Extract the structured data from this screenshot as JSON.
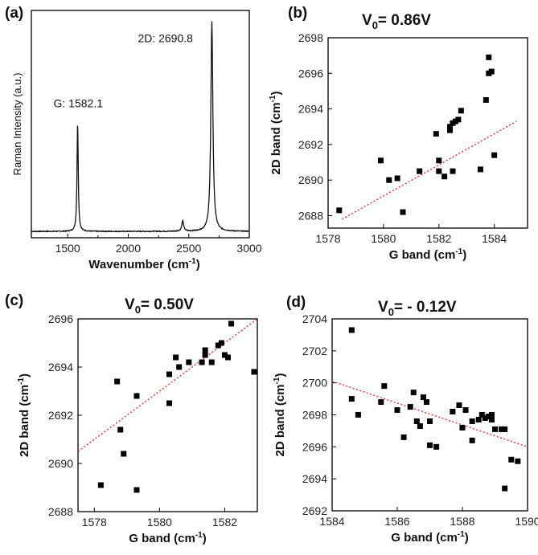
{
  "chart_data": [
    {
      "panel": "(a)",
      "type": "line",
      "xlabel": "Wavenumber",
      "xlabel_unit_base": "(cm",
      "xlabel_unit_exp": "-1",
      "xlabel_unit_end": ")",
      "ylabel": "Raman Intensity (a.u.)",
      "xlim": [
        1200,
        3000
      ],
      "xticks": [
        1500,
        2000,
        2500,
        3000
      ],
      "annotations": [
        {
          "text": "G: 1582.1",
          "x": 1582.1
        },
        {
          "text": "2D: 2690.8",
          "x": 2690.8
        }
      ],
      "peaks": [
        {
          "center": 1582.1,
          "height": 0.52,
          "width": 12
        },
        {
          "center": 2450,
          "height": 0.05,
          "width": 18
        },
        {
          "center": 2690.8,
          "height": 1.0,
          "width": 20
        }
      ],
      "baseline": 0.03
    },
    {
      "panel": "(b)",
      "type": "scatter",
      "title_prefix": "V",
      "title_sub": "0",
      "title_suffix": "= 0.86V",
      "xlabel": "G band (cm",
      "xlabel_exp": "-1",
      "xlabel_end": ")",
      "ylabel": "2D band (cm",
      "ylabel_exp": "-1",
      "ylabel_end": ")",
      "xlim": [
        1578,
        1585.2
      ],
      "ylim": [
        2687.3,
        2698
      ],
      "xticks": [
        1578,
        1580,
        1582,
        1584
      ],
      "yticks": [
        2688,
        2690,
        2692,
        2694,
        2696,
        2698
      ],
      "fit": [
        [
          1578.5,
          2687.8
        ],
        [
          1584.8,
          2693.3
        ]
      ],
      "points": [
        [
          1578.4,
          2688.3
        ],
        [
          1579.9,
          2691.1
        ],
        [
          1580.2,
          2690.0
        ],
        [
          1580.5,
          2690.1
        ],
        [
          1580.7,
          2688.2
        ],
        [
          1581.3,
          2690.5
        ],
        [
          1581.9,
          2692.6
        ],
        [
          1582.0,
          2691.1
        ],
        [
          1582.0,
          2690.5
        ],
        [
          1582.2,
          2690.2
        ],
        [
          1582.4,
          2692.8
        ],
        [
          1582.4,
          2693.0
        ],
        [
          1582.5,
          2693.2
        ],
        [
          1582.5,
          2690.5
        ],
        [
          1582.6,
          2693.3
        ],
        [
          1582.7,
          2693.4
        ],
        [
          1582.8,
          2693.9
        ],
        [
          1583.5,
          2690.6
        ],
        [
          1583.7,
          2694.5
        ],
        [
          1583.8,
          2696.0
        ],
        [
          1583.8,
          2696.9
        ],
        [
          1583.9,
          2696.1
        ],
        [
          1584.0,
          2691.4
        ]
      ]
    },
    {
      "panel": "(c)",
      "type": "scatter",
      "title_prefix": "V",
      "title_sub": "0",
      "title_suffix": "= 0.50V",
      "xlabel": "G band (cm",
      "xlabel_exp": "-1",
      "xlabel_end": ")",
      "ylabel": "2D band (cm",
      "ylabel_exp": "-1",
      "ylabel_end": ")",
      "xlim": [
        1577.5,
        1583
      ],
      "ylim": [
        2688,
        2696
      ],
      "xticks": [
        1578,
        1580,
        1582
      ],
      "yticks": [
        2688,
        2690,
        2692,
        2694,
        2696
      ],
      "fit": [
        [
          1577.5,
          2690.5
        ],
        [
          1583,
          2696
        ]
      ],
      "points": [
        [
          1578.2,
          2689.1
        ],
        [
          1578.7,
          2693.4
        ],
        [
          1578.8,
          2691.4
        ],
        [
          1578.9,
          2690.4
        ],
        [
          1579.3,
          2692.8
        ],
        [
          1579.3,
          2688.9
        ],
        [
          1580.3,
          2692.5
        ],
        [
          1580.3,
          2693.7
        ],
        [
          1580.5,
          2694.4
        ],
        [
          1580.6,
          2694.0
        ],
        [
          1580.9,
          2694.2
        ],
        [
          1581.3,
          2694.2
        ],
        [
          1581.4,
          2694.7
        ],
        [
          1581.4,
          2694.5
        ],
        [
          1581.6,
          2694.2
        ],
        [
          1581.8,
          2694.9
        ],
        [
          1581.9,
          2695.0
        ],
        [
          1582.0,
          2694.5
        ],
        [
          1582.1,
          2694.4
        ],
        [
          1582.2,
          2695.8
        ],
        [
          1582.9,
          2693.8
        ]
      ]
    },
    {
      "panel": "(d)",
      "type": "scatter",
      "title_prefix": "V",
      "title_sub": "0",
      "title_suffix": "= - 0.12V",
      "xlabel": "G band (cm",
      "xlabel_exp": "-1",
      "xlabel_end": ")",
      "ylabel": "2D band (cm",
      "ylabel_exp": "-1",
      "ylabel_end": ")",
      "xlim": [
        1584,
        1590
      ],
      "ylim": [
        2692,
        2704
      ],
      "xticks": [
        1584,
        1586,
        1588,
        1590
      ],
      "yticks": [
        2692,
        2694,
        2696,
        2698,
        2700,
        2702,
        2704
      ],
      "fit": [
        [
          1584,
          2700.1
        ],
        [
          1590,
          2696.0
        ]
      ],
      "points": [
        [
          1584.6,
          2703.3
        ],
        [
          1584.6,
          2699.0
        ],
        [
          1584.8,
          2698.0
        ],
        [
          1585.5,
          2698.8
        ],
        [
          1585.6,
          2699.8
        ],
        [
          1586.0,
          2698.3
        ],
        [
          1586.2,
          2696.6
        ],
        [
          1586.4,
          2698.5
        ],
        [
          1586.5,
          2699.4
        ],
        [
          1586.6,
          2697.6
        ],
        [
          1586.7,
          2697.3
        ],
        [
          1586.8,
          2699.1
        ],
        [
          1586.9,
          2698.8
        ],
        [
          1587.0,
          2696.1
        ],
        [
          1587.0,
          2697.6
        ],
        [
          1587.2,
          2696.0
        ],
        [
          1587.7,
          2698.2
        ],
        [
          1587.9,
          2698.6
        ],
        [
          1588.0,
          2697.2
        ],
        [
          1588.1,
          2698.3
        ],
        [
          1588.3,
          2697.6
        ],
        [
          1588.3,
          2696.4
        ],
        [
          1588.5,
          2697.7
        ],
        [
          1588.6,
          2698.0
        ],
        [
          1588.7,
          2697.8
        ],
        [
          1588.8,
          2697.9
        ],
        [
          1588.9,
          2698.0
        ],
        [
          1588.9,
          2697.7
        ],
        [
          1589.0,
          2697.1
        ],
        [
          1589.2,
          2697.1
        ],
        [
          1589.3,
          2697.1
        ],
        [
          1589.3,
          2693.4
        ],
        [
          1589.5,
          2695.2
        ],
        [
          1589.7,
          2695.1
        ]
      ]
    }
  ]
}
